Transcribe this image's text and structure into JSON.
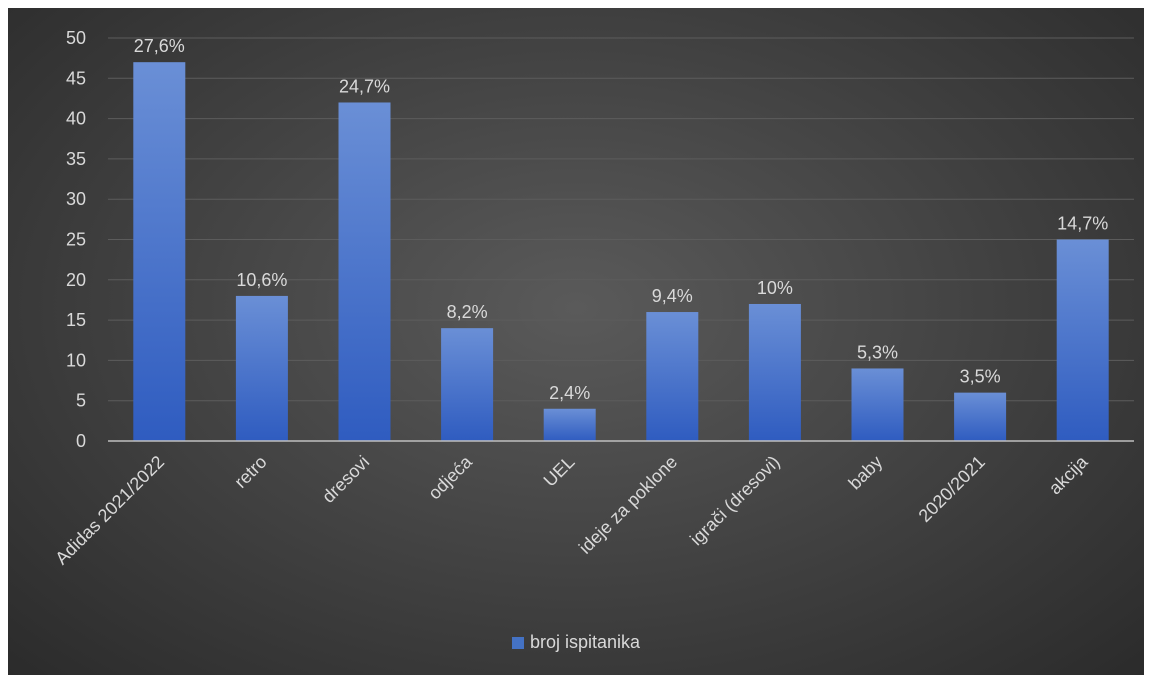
{
  "chart_data": {
    "type": "bar",
    "categories": [
      "Adidas 2021/2022",
      "retro",
      "dresovi",
      "odjeća",
      "UEL",
      "ideje za poklone",
      "igrači (dresovi)",
      "baby",
      "2020/2021",
      "akcija"
    ],
    "series": [
      {
        "name": "broj ispitanika",
        "values": [
          47,
          18,
          42,
          14,
          4,
          16,
          17,
          9,
          6,
          25
        ],
        "data_labels": [
          "27,6%",
          "10,6%",
          "24,7%",
          "8,2%",
          "2,4%",
          "9,4%",
          "10%",
          "5,3%",
          "3,5%",
          "14,7%"
        ]
      }
    ],
    "yticks": [
      0,
      5,
      10,
      15,
      20,
      25,
      30,
      35,
      40,
      45,
      50
    ],
    "ylim": [
      0,
      50
    ],
    "grid": true,
    "legend_position": "bottom",
    "colors": {
      "bar_top": "#6a8fd6",
      "bar_bottom": "#2f5cc0",
      "legend": "#4472c4",
      "background": "#404040"
    }
  }
}
